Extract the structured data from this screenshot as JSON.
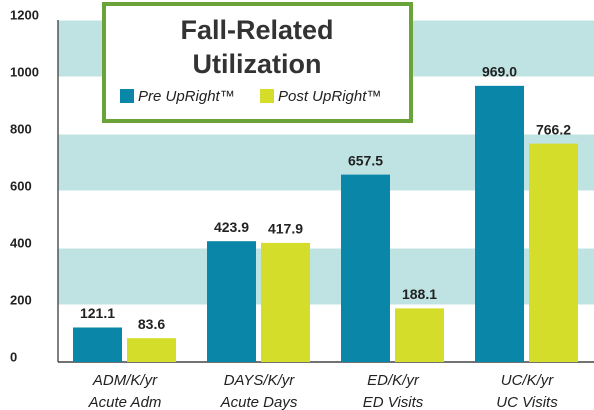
{
  "chart_data": {
    "type": "bar",
    "title": [
      "Fall-Related",
      "Utilization"
    ],
    "categories": [
      [
        "ADM/K/yr",
        "Acute Adm"
      ],
      [
        "DAYS/K/yr",
        "Acute Days"
      ],
      [
        "ED/K/yr",
        "ED Visits"
      ],
      [
        "UC/K/yr",
        "UC Visits"
      ]
    ],
    "series": [
      {
        "name": "Pre UpRight™",
        "color": "#0a87a8",
        "values": [
          121.1,
          423.9,
          657.5,
          969.0
        ],
        "value_labels": [
          "121.1",
          "423.9",
          "657.5",
          "969.0"
        ]
      },
      {
        "name": "Post UpRight™",
        "color": "#d4de2a",
        "values": [
          83.6,
          417.9,
          188.1,
          766.2
        ],
        "value_labels": [
          "83.6",
          "417.9",
          "188.1",
          "766.2"
        ]
      }
    ],
    "ylim": [
      0,
      1200
    ],
    "yticks": [
      0,
      200,
      400,
      600,
      800,
      1000,
      1200
    ],
    "band_color": "#bfe3e3",
    "grid": true
  }
}
